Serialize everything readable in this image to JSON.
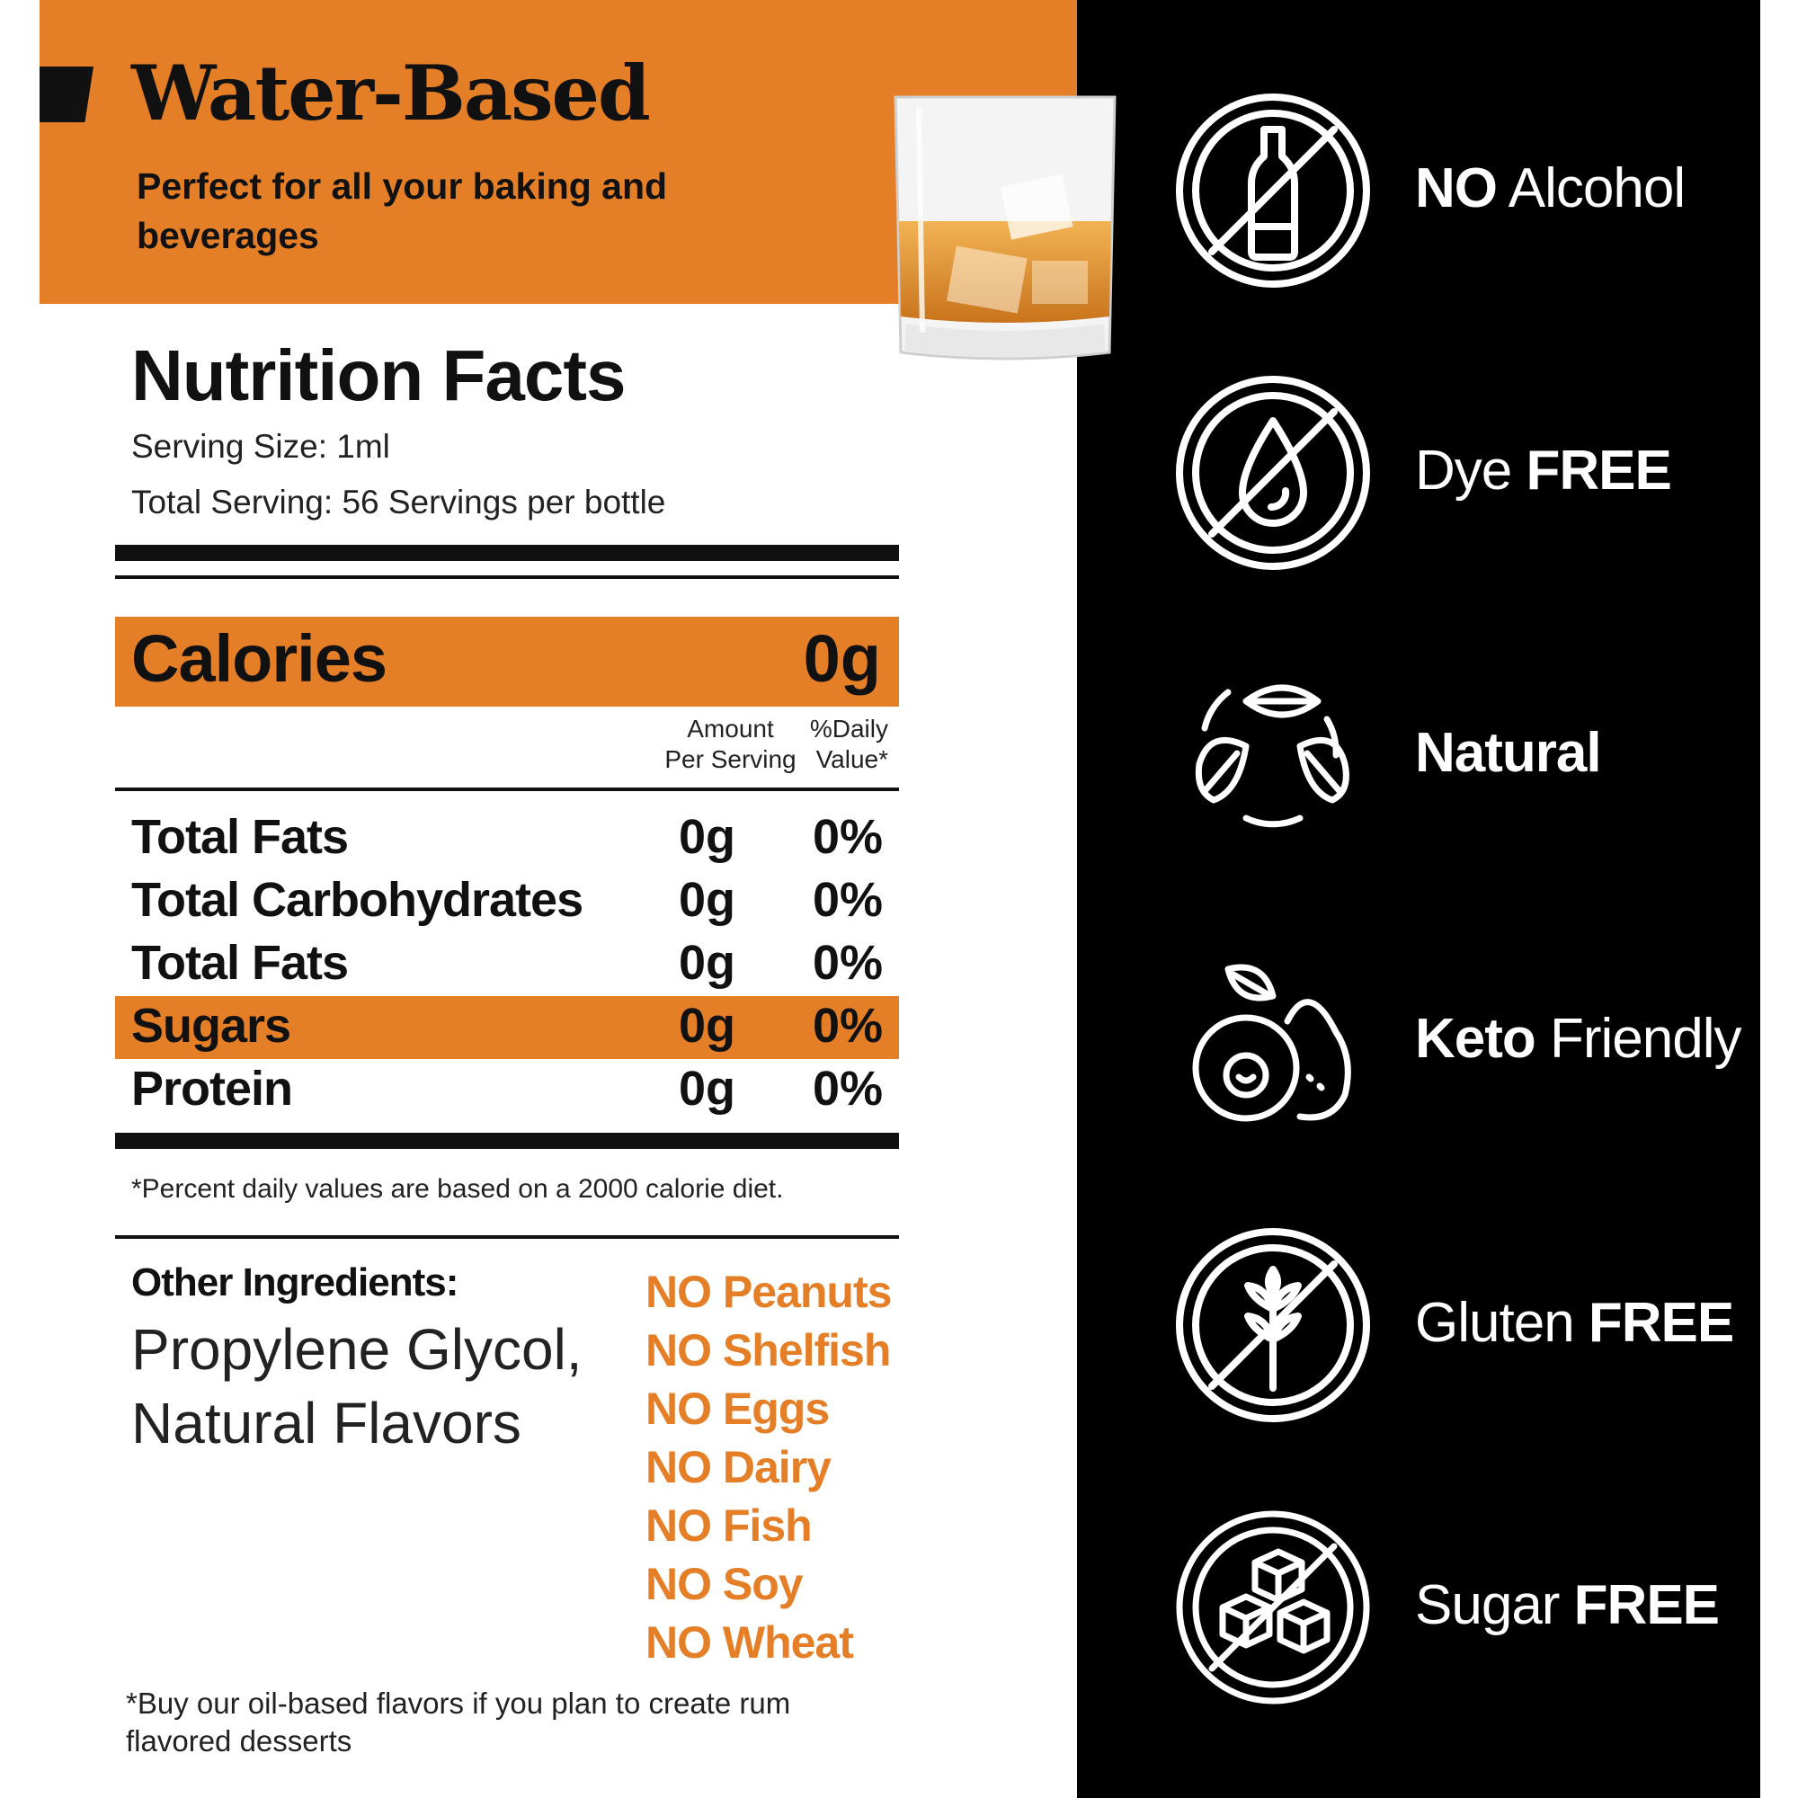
{
  "header": {
    "title": "Water-Based",
    "subtitle": "Perfect for all your baking and beverages"
  },
  "nutrition": {
    "title": "Nutrition Facts",
    "serving_size": "Serving Size: 1ml",
    "total_serving": "Total Serving: 56 Servings per bottle",
    "calories_label": "Calories",
    "calories_value": "0g",
    "col_amount_line1": "Amount",
    "col_amount_line2": "Per Serving",
    "col_daily_line1": "%Daily",
    "col_daily_line2": "Value*",
    "rows": [
      {
        "name": "Total Fats",
        "amount": "0g",
        "dv": "0%"
      },
      {
        "name": "Total Carbohydrates",
        "amount": "0g",
        "dv": "0%"
      },
      {
        "name": "Total Fats",
        "amount": "0g",
        "dv": "0%"
      },
      {
        "name": "Sugars",
        "amount": "0g",
        "dv": "0%"
      },
      {
        "name": "Protein",
        "amount": "0g",
        "dv": "0%"
      }
    ],
    "footnote": "*Percent daily values are based on a 2000 calorie diet."
  },
  "ingredients": {
    "title": "Other Ingredients:",
    "line1": "Propylene Glycol,",
    "line2": "Natural Flavors"
  },
  "allergens": [
    "NO Peanuts",
    "NO Shelfish",
    "NO Eggs",
    "NO Dairy",
    "NO Fish",
    "NO Soy",
    "NO Wheat"
  ],
  "footnote_oil": "*Buy our oil-based flavors if you plan to create rum flavored desserts",
  "features": [
    {
      "bold": "NO",
      "regular": " Alcohol",
      "icon": "no-alcohol-icon"
    },
    {
      "regular": "Dye ",
      "bold": "FREE",
      "icon": "dye-free-icon"
    },
    {
      "bold": "Natural",
      "icon": "natural-leaves-icon"
    },
    {
      "bold": "Keto",
      "regular": " Friendly",
      "icon": "avocado-icon"
    },
    {
      "regular": "Gluten ",
      "bold": "FREE",
      "icon": "gluten-free-icon"
    },
    {
      "regular": "Sugar ",
      "bold": "FREE",
      "icon": "sugar-free-icon"
    }
  ],
  "colors": {
    "accent": "#e57f27",
    "dark": "#000000",
    "text": "#111111"
  }
}
